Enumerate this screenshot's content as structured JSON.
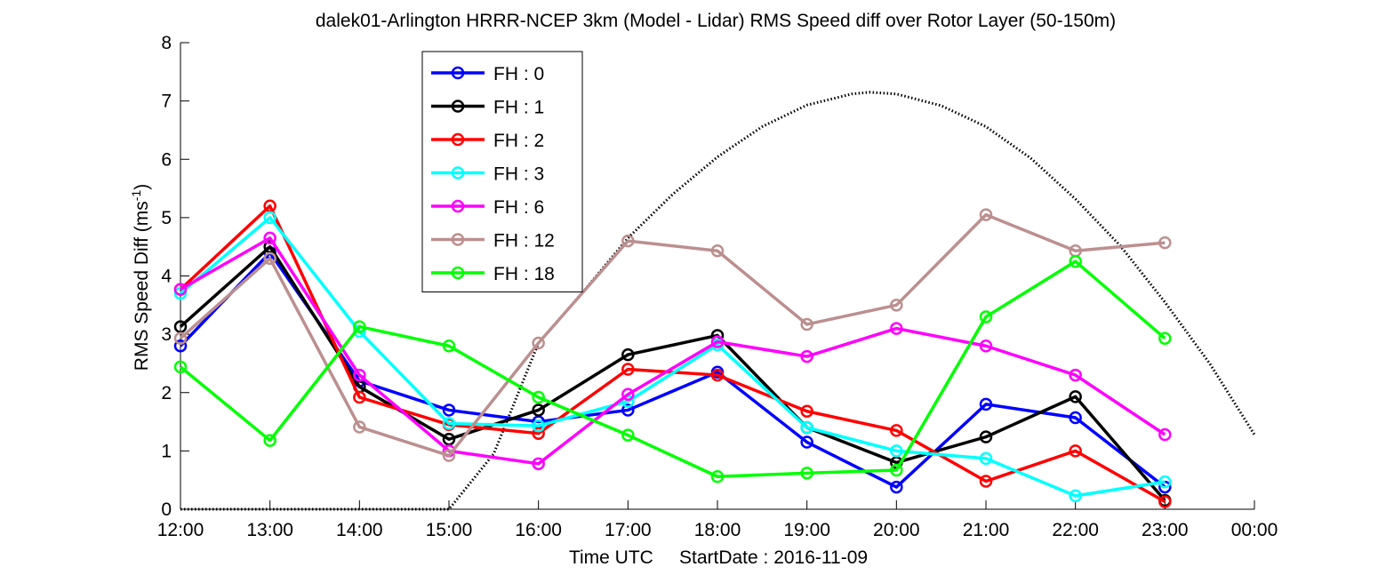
{
  "chart_data": {
    "type": "line",
    "title": "dalek01-Arlington HRRR-NCEP 3km (Model - Lidar) RMS Speed diff over Rotor Layer (50-150m)",
    "xlabel": "Time UTC     StartDate : 2016-11-09",
    "ylabel_main": "RMS Speed Diff (ms",
    "ylabel_sup": "-1",
    "ylabel_close": ")",
    "categories": [
      "12:00",
      "13:00",
      "14:00",
      "15:00",
      "16:00",
      "17:00",
      "18:00",
      "19:00",
      "20:00",
      "21:00",
      "22:00",
      "23:00",
      "00:00"
    ],
    "x_hours": [
      12,
      13,
      14,
      15,
      16,
      17,
      18,
      19,
      20,
      21,
      22,
      23,
      24
    ],
    "xlim": [
      12,
      24
    ],
    "ylim": [
      0,
      8
    ],
    "yticks": [
      0,
      1,
      2,
      3,
      4,
      5,
      6,
      7,
      8
    ],
    "ytick_labels": [
      "0",
      "1",
      "2",
      "3",
      "4",
      "5",
      "6",
      "7",
      "8"
    ],
    "legend_position": "upper-left inside axes",
    "series": [
      {
        "name": "FH : 0",
        "color": "#0000ff",
        "x": [
          12,
          13,
          14,
          15,
          16,
          17,
          18,
          19,
          20,
          21,
          22,
          23
        ],
        "values": [
          2.8,
          4.4,
          2.2,
          1.7,
          1.5,
          1.7,
          2.35,
          1.15,
          0.38,
          1.8,
          1.57,
          0.38
        ]
      },
      {
        "name": "FH : 1",
        "color": "#000000",
        "x": [
          12,
          13,
          14,
          15,
          16,
          17,
          18,
          19,
          20,
          21,
          22,
          23
        ],
        "values": [
          3.13,
          4.5,
          2.1,
          1.2,
          1.7,
          2.65,
          2.98,
          1.4,
          0.8,
          1.24,
          1.93,
          0.15
        ]
      },
      {
        "name": "FH : 2",
        "color": "#ff0000",
        "x": [
          12,
          13,
          14,
          15,
          16,
          17,
          18,
          19,
          20,
          21,
          22,
          23
        ],
        "values": [
          3.77,
          5.2,
          1.92,
          1.45,
          1.3,
          2.4,
          2.3,
          1.68,
          1.35,
          0.48,
          1.0,
          0.13
        ]
      },
      {
        "name": "FH : 3",
        "color": "#00ffff",
        "x": [
          12,
          13,
          14,
          15,
          16,
          17,
          18,
          19,
          20,
          21,
          22,
          23
        ],
        "values": [
          3.7,
          5.0,
          3.05,
          1.47,
          1.43,
          1.85,
          2.82,
          1.4,
          1.0,
          0.87,
          0.23,
          0.47
        ]
      },
      {
        "name": "FH : 6",
        "color": "#ff00ff",
        "x": [
          12,
          13,
          14,
          15,
          16,
          17,
          18,
          19,
          20,
          21,
          22,
          23
        ],
        "values": [
          3.77,
          4.65,
          2.3,
          1.0,
          0.78,
          1.97,
          2.87,
          2.62,
          3.1,
          2.8,
          2.3,
          1.28
        ]
      },
      {
        "name": "FH : 12",
        "color": "#bc8f8f",
        "x": [
          12,
          13,
          14,
          15,
          16,
          17,
          18,
          19,
          20,
          21,
          22,
          23
        ],
        "values": [
          2.93,
          4.3,
          1.41,
          0.92,
          2.85,
          4.6,
          4.43,
          3.17,
          3.5,
          5.05,
          4.43,
          4.57
        ]
      },
      {
        "name": "FH : 18",
        "color": "#00ff00",
        "x": [
          12,
          13,
          14,
          15,
          16,
          17,
          18,
          19,
          20,
          21,
          22,
          23
        ],
        "values": [
          2.44,
          1.18,
          3.13,
          2.8,
          1.92,
          1.27,
          0.56,
          0.62,
          0.67,
          3.3,
          4.25,
          2.93
        ]
      }
    ],
    "reference_curve": {
      "style": "dotted black",
      "x": [
        12,
        13,
        14,
        15,
        15.5,
        16,
        16.5,
        17,
        17.5,
        18,
        18.5,
        19,
        19.5,
        19.7,
        20,
        20.5,
        21,
        21.5,
        22,
        22.5,
        23,
        23.5,
        24
      ],
      "values": [
        0,
        0,
        0,
        0,
        0.95,
        2.85,
        3.73,
        4.65,
        5.4,
        6.04,
        6.56,
        6.93,
        7.12,
        7.15,
        7.12,
        6.92,
        6.56,
        6.02,
        5.32,
        4.52,
        3.55,
        2.5,
        1.28
      ]
    }
  }
}
